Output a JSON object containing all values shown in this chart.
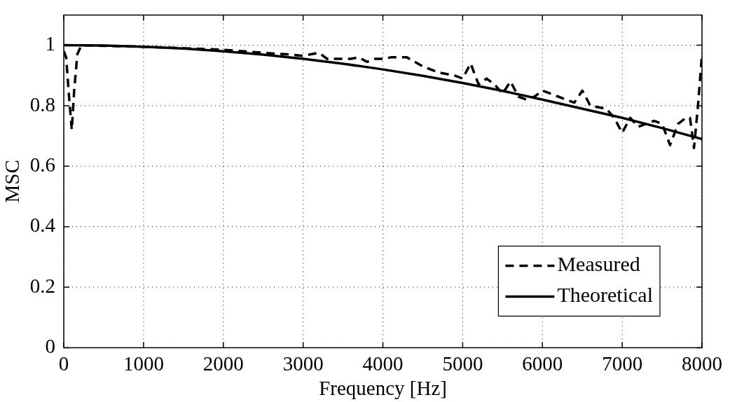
{
  "chart_data": {
    "type": "line",
    "xlabel": "Frequency [Hz]",
    "ylabel": "MSC",
    "xlim": [
      0,
      8000
    ],
    "xticks": [
      0,
      1000,
      2000,
      3000,
      4000,
      5000,
      6000,
      7000,
      8000
    ],
    "ylim": [
      0,
      1.1
    ],
    "yticks": [
      0,
      0.2,
      0.4,
      0.6,
      0.8,
      1
    ],
    "grid": true,
    "legend": "bottom right",
    "marker": "none",
    "series": [
      {
        "name": "Measured",
        "color": "#000000",
        "line_style": "dashed",
        "x": [
          0,
          30,
          60,
          100,
          130,
          170,
          220,
          500,
          1000,
          1500,
          2000,
          2500,
          2800,
          3000,
          3200,
          3300,
          3600,
          3700,
          3800,
          3900,
          4000,
          4100,
          4300,
          4500,
          4700,
          4900,
          5000,
          5100,
          5200,
          5300,
          5400,
          5500,
          5600,
          5700,
          5800,
          5900,
          6000,
          6200,
          6400,
          6500,
          6600,
          6800,
          6900,
          7000,
          7100,
          7200,
          7400,
          7500,
          7600,
          7700,
          7800,
          7850,
          7900,
          7950,
          8000
        ],
        "values": [
          0.98,
          0.96,
          0.85,
          0.72,
          0.85,
          0.97,
          1.0,
          0.998,
          0.995,
          0.99,
          0.985,
          0.975,
          0.97,
          0.965,
          0.975,
          0.955,
          0.955,
          0.96,
          0.945,
          0.955,
          0.955,
          0.96,
          0.96,
          0.93,
          0.91,
          0.9,
          0.89,
          0.94,
          0.87,
          0.89,
          0.87,
          0.84,
          0.88,
          0.83,
          0.82,
          0.83,
          0.85,
          0.83,
          0.81,
          0.85,
          0.8,
          0.79,
          0.76,
          0.71,
          0.76,
          0.73,
          0.75,
          0.74,
          0.67,
          0.74,
          0.76,
          0.76,
          0.66,
          0.8,
          0.97
        ]
      },
      {
        "name": "Theoretical",
        "color": "#000000",
        "line_style": "solid",
        "x": [
          0,
          500,
          1000,
          1500,
          2000,
          2500,
          3000,
          3500,
          4000,
          4500,
          5000,
          5500,
          6000,
          6500,
          7000,
          7500,
          8000
        ],
        "values": [
          1,
          0.999,
          0.995,
          0.989,
          0.98,
          0.969,
          0.955,
          0.939,
          0.92,
          0.899,
          0.875,
          0.849,
          0.82,
          0.79,
          0.76,
          0.726,
          0.69
        ]
      }
    ]
  }
}
